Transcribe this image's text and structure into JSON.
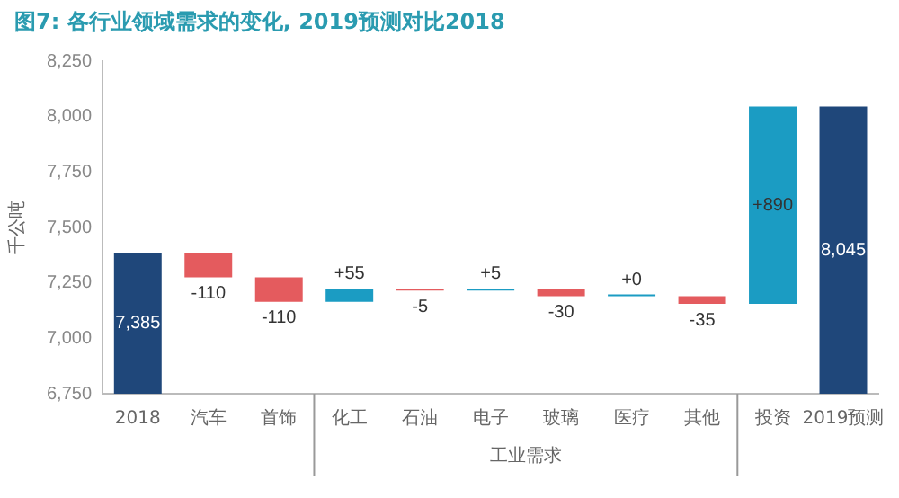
{
  "chart_data": {
    "type": "bar",
    "title": "图7: 各行业领域需求的变化, 2019预测对比2018",
    "ylabel": "千公吨",
    "categories": [
      "2018",
      "汽车",
      "首饰",
      "化工",
      "石油",
      "电子",
      "玻璃",
      "医疗",
      "其他",
      "投资",
      "2019预测"
    ],
    "values": [
      7385,
      -110,
      -110,
      55,
      -5,
      5,
      -30,
      0,
      -35,
      890,
      8045
    ],
    "base": [
      null,
      7385,
      7275,
      7165,
      7220,
      7215,
      7220,
      7190,
      7190,
      7155,
      null
    ],
    "colors": [
      "#1f477a",
      "#e45b5e",
      "#e45b5e",
      "#1b9cc3",
      "#e45b5e",
      "#1b9cc3",
      "#e45b5e",
      "#1b9cc3",
      "#e45b5e",
      "#1b9cc3",
      "#1f477a"
    ],
    "value_labels": [
      "7,385",
      "-110",
      "-110",
      "+55",
      "-5",
      "+5",
      "-30",
      "+0",
      "-35",
      "+890",
      "8,045"
    ],
    "annotations": [
      {
        "text": "工业需求"
      }
    ],
    "ylim": [
      6750,
      8250
    ],
    "yticks": [
      {
        "value": 6750,
        "label": "6,750"
      },
      {
        "value": 7000,
        "label": "7,000"
      },
      {
        "value": 7250,
        "label": "7,250"
      },
      {
        "value": 7500,
        "label": "7,500"
      },
      {
        "value": 7750,
        "label": "7,750"
      },
      {
        "value": 8000,
        "label": "8,000"
      },
      {
        "value": 8250,
        "label": "8,250"
      }
    ],
    "grid": false,
    "legend": false
  }
}
